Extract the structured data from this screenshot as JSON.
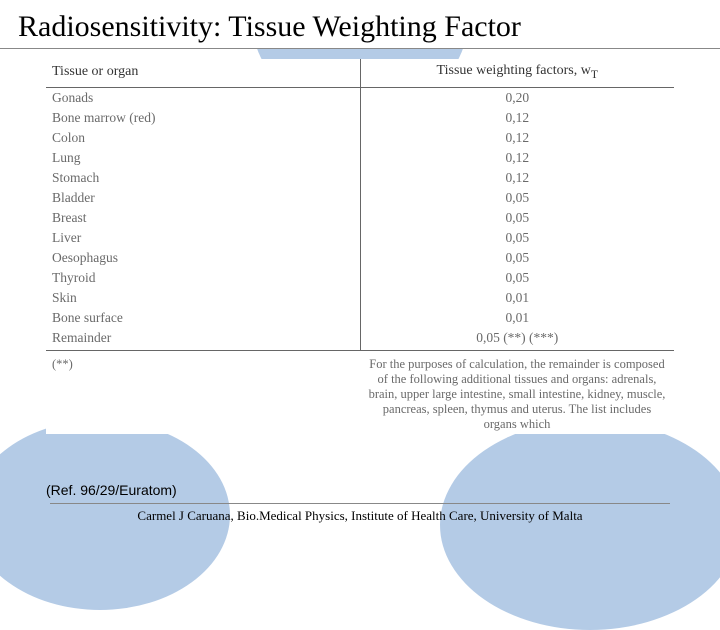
{
  "title": "Radiosensitivity: Tissue Weighting Factor",
  "table": {
    "header_left": "Tissue or organ",
    "header_right": "Tissue weighting factors, w",
    "header_right_sub": "T",
    "rows": [
      {
        "organ": "Gonads",
        "value": "0,20"
      },
      {
        "organ": "Bone marrow (red)",
        "value": "0,12"
      },
      {
        "organ": "Colon",
        "value": "0,12"
      },
      {
        "organ": "Lung",
        "value": "0,12"
      },
      {
        "organ": "Stomach",
        "value": "0,12"
      },
      {
        "organ": "Bladder",
        "value": "0,05"
      },
      {
        "organ": "Breast",
        "value": "0,05"
      },
      {
        "organ": "Liver",
        "value": "0,05"
      },
      {
        "organ": "Oesophagus",
        "value": "0,05"
      },
      {
        "organ": "Thyroid",
        "value": "0,05"
      },
      {
        "organ": "Skin",
        "value": "0,01"
      },
      {
        "organ": "Bone surface",
        "value": "0,01"
      },
      {
        "organ": "Remainder",
        "value": "0,05 (**) (***)"
      }
    ],
    "footnote_marker": "(**)",
    "footnote_text": "For the purposes of calculation, the remainder is composed of the following additional tissues and organs: adrenals, brain, upper large intestine, small intestine, kidney, muscle, pancreas, spleen, thymus and uterus. The list includes organs which"
  },
  "reference": "(Ref. 96/29/Euratom)",
  "credit": "Carmel J Caruana, Bio.Medical Physics, Institute of Health Care, University of Malta",
  "colors": {
    "bg_shape": "#b4cbe6",
    "text_body": "#6a6a6a",
    "rule": "#888888"
  }
}
